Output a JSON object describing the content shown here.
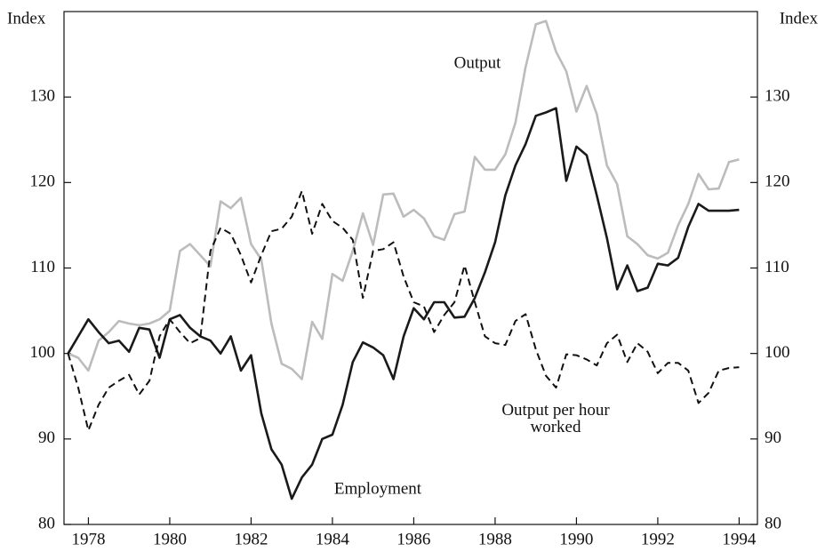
{
  "chart_data": {
    "type": "line",
    "y_label": "Index",
    "y2_label": "Index",
    "x": [
      1977.5,
      1977.75,
      1978,
      1978.25,
      1978.5,
      1978.75,
      1979,
      1979.25,
      1979.5,
      1979.75,
      1980,
      1980.25,
      1980.5,
      1980.75,
      1981,
      1981.25,
      1981.5,
      1981.75,
      1982,
      1982.25,
      1982.5,
      1982.75,
      1983,
      1983.25,
      1983.5,
      1983.75,
      1984,
      1984.25,
      1984.5,
      1984.75,
      1985,
      1985.25,
      1985.5,
      1985.75,
      1986,
      1986.25,
      1986.5,
      1986.75,
      1987,
      1987.25,
      1987.5,
      1987.75,
      1988,
      1988.25,
      1988.5,
      1988.75,
      1989,
      1989.25,
      1989.5,
      1989.75,
      1990,
      1990.25,
      1990.5,
      1990.75,
      1991,
      1991.25,
      1991.5,
      1991.75,
      1992,
      1992.25,
      1992.5,
      1992.75,
      1993,
      1993.25,
      1993.5,
      1993.75,
      1994
    ],
    "series": [
      {
        "name": "Output",
        "color": "#bcbcbc",
        "dash": false,
        "values": [
          100,
          99.5,
          98,
          101.5,
          102.5,
          103.8,
          103.5,
          103.3,
          103.5,
          104,
          105,
          112,
          112.8,
          111.5,
          110.2,
          117.8,
          117,
          118.2,
          112.8,
          111,
          103.5,
          98.8,
          98.2,
          97,
          103.7,
          101.7,
          109.3,
          108.5,
          112,
          116.4,
          112.7,
          118.6,
          118.7,
          116,
          116.8,
          115.8,
          113.7,
          113.3,
          116.3,
          116.6,
          123,
          121.5,
          121.5,
          123.3,
          127,
          133.5,
          138.5,
          138.9,
          135.3,
          133,
          128.3,
          131.3,
          128,
          122,
          119.8,
          113.7,
          112.8,
          111.5,
          111.1,
          111.8,
          115,
          117.5,
          121,
          119.2,
          119.3,
          122.4,
          122.7
        ]
      },
      {
        "name": "Employment",
        "color": "#1a1a1a",
        "dash": false,
        "values": [
          100,
          102,
          104,
          102.5,
          101.2,
          101.5,
          100.2,
          103,
          102.8,
          99.5,
          104,
          104.5,
          103,
          102,
          101.5,
          100,
          102,
          98,
          99.8,
          93,
          88.8,
          87,
          83,
          85.5,
          87,
          90,
          90.5,
          94,
          99,
          101.3,
          100.7,
          99.8,
          97,
          102,
          105.3,
          104,
          106,
          106,
          104.2,
          104.3,
          106.5,
          109.5,
          113,
          118.5,
          122,
          124.5,
          127.8,
          128.2,
          128.7,
          120.2,
          124.2,
          123.2,
          118.5,
          113.5,
          107.5,
          110.3,
          107.3,
          107.7,
          110.5,
          110.3,
          111.2,
          114.8,
          117.5,
          116.7,
          116.7,
          116.7,
          116.8
        ]
      },
      {
        "name": "Output per hour worked",
        "color": "#111111",
        "dash": true,
        "values": [
          100,
          96,
          91,
          94,
          96,
          96.8,
          97.5,
          95.2,
          96.8,
          102,
          104,
          102.5,
          101.2,
          101.8,
          112,
          114.7,
          114,
          111.5,
          108.3,
          111.5,
          114.3,
          114.6,
          116,
          119,
          114,
          117.5,
          115.5,
          114.7,
          113.3,
          106.5,
          112,
          112.2,
          113,
          109,
          106,
          105.5,
          102.5,
          104.5,
          106,
          110.3,
          106,
          102,
          101.2,
          101,
          103.8,
          104.6,
          100.5,
          97.4,
          96,
          99.9,
          99.8,
          99.3,
          98.6,
          101.2,
          102.2,
          99,
          101.2,
          100.2,
          97.7,
          98.9,
          98.9,
          98,
          94.2,
          95.4,
          98,
          98.3,
          98.4
        ]
      }
    ],
    "xlim": [
      1977.4,
      1994.45
    ],
    "xticks": [
      1978,
      1980,
      1982,
      1984,
      1986,
      1988,
      1990,
      1992,
      1994
    ],
    "ylim": [
      80,
      140
    ],
    "yticks": [
      80,
      90,
      100,
      110,
      120,
      130
    ],
    "y2lim": [
      80,
      140
    ],
    "y2ticks": [
      80,
      90,
      100,
      110,
      120,
      130
    ],
    "grid": false
  }
}
